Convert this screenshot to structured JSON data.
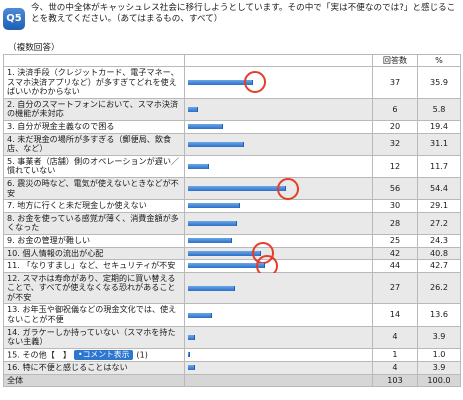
{
  "question": {
    "badge": "Q5",
    "text": "今、世の中全体がキャッシュレス社会に移行しようとしています。その中で「実は不便なのでは?」と感じることを教えてください。（あてはまるもの、すべて）"
  },
  "multi_label": "（複数回答）",
  "table": {
    "col_count": "回答数",
    "col_pct": "%",
    "comment_button": "•コメント表示",
    "rows": [
      {
        "label": "1. 決済手段（クレジットカード、電子マネー、スマホ決済アプリなど）が多すぎてどれを使えばいいかわからない",
        "count": "37",
        "pct": "35.9",
        "value": 35.9,
        "ring": true
      },
      {
        "label": "2. 自分のスマートフォンにおいて、スマホ決済の機能が未対応",
        "count": "6",
        "pct": "5.8",
        "value": 5.8,
        "ring": false
      },
      {
        "label": "3. 自分が現金主義なので困る",
        "count": "20",
        "pct": "19.4",
        "value": 19.4,
        "ring": false
      },
      {
        "label": "4. 未だ現金の場所が多すぎる（郵便局、飲食店、など）",
        "count": "32",
        "pct": "31.1",
        "value": 31.1,
        "ring": false
      },
      {
        "label": "5. 事業者（店舗）側のオペレーションが遅い／慣れていない",
        "count": "12",
        "pct": "11.7",
        "value": 11.7,
        "ring": false
      },
      {
        "label": "6. 震災の時など、電気が使えないときなどが不安",
        "count": "56",
        "pct": "54.4",
        "value": 54.4,
        "ring": true
      },
      {
        "label": "7. 地方に行くと未だ現金しか使えない",
        "count": "30",
        "pct": "29.1",
        "value": 29.1,
        "ring": false
      },
      {
        "label": "8. お金を使っている感覚が薄く、消費金額が多くなった",
        "count": "28",
        "pct": "27.2",
        "value": 27.2,
        "ring": false
      },
      {
        "label": "9. お金の管理が難しい",
        "count": "25",
        "pct": "24.3",
        "value": 24.3,
        "ring": false
      },
      {
        "label": "10. 個人情報の流出が心配",
        "count": "42",
        "pct": "40.8",
        "value": 40.8,
        "ring": true
      },
      {
        "label": "11. 「なりすまし」など、セキュリティが不安",
        "count": "44",
        "pct": "42.7",
        "value": 42.7,
        "ring": true
      },
      {
        "label": "12. スマホは寿命があり、定期的に買い替えることで、すべてが使えなくなる恐れがあることが不安",
        "count": "27",
        "pct": "26.2",
        "value": 26.2,
        "ring": false
      },
      {
        "label": "13. お年玉や御祝儀などの現金文化では、使えないことが不便",
        "count": "14",
        "pct": "13.6",
        "value": 13.6,
        "ring": false
      },
      {
        "label": "14. ガラケーしか持っていない（スマホを持たない主義）",
        "count": "4",
        "pct": "3.9",
        "value": 3.9,
        "ring": false
      },
      {
        "label": "15. その他【　】",
        "label_suffix": "(1)",
        "count": "1",
        "pct": "1.0",
        "value": 1.0,
        "ring": false,
        "has_comment": true
      },
      {
        "label": "16. 特に不便と感じることはない",
        "count": "4",
        "pct": "3.9",
        "value": 3.9,
        "ring": false
      }
    ],
    "total": {
      "label": "全体",
      "count": "103",
      "pct": "100.0"
    }
  }
}
